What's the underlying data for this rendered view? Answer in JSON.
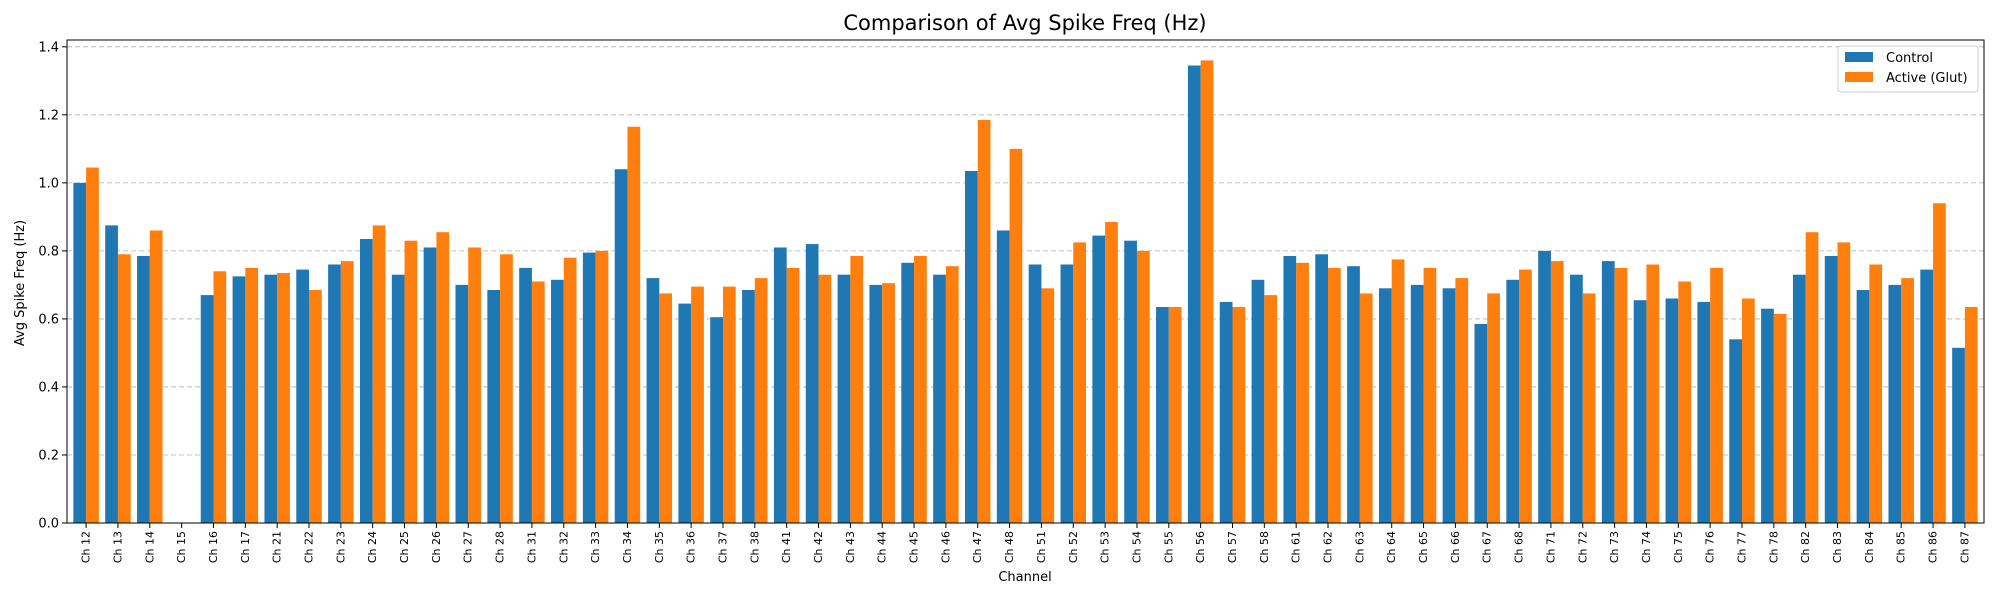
{
  "chart_data": {
    "type": "bar",
    "title": "Comparison of Avg Spike Freq (Hz)",
    "xlabel": "Channel",
    "ylabel": "Avg Spike Freq (Hz)",
    "ylim": [
      0,
      1.42
    ],
    "yticks": [
      0.0,
      0.2,
      0.4,
      0.6,
      0.8,
      1.0,
      1.2,
      1.4
    ],
    "ytick_labels": [
      "0.0",
      "0.2",
      "0.4",
      "0.6",
      "0.8",
      "1.0",
      "1.2",
      "1.4"
    ],
    "grid": "y-dashed",
    "legend_position": "top-right",
    "categories": [
      "Ch 12",
      "Ch 13",
      "Ch 14",
      "Ch 15",
      "Ch 16",
      "Ch 17",
      "Ch 21",
      "Ch 22",
      "Ch 23",
      "Ch 24",
      "Ch 25",
      "Ch 26",
      "Ch 27",
      "Ch 28",
      "Ch 31",
      "Ch 32",
      "Ch 33",
      "Ch 34",
      "Ch 35",
      "Ch 36",
      "Ch 37",
      "Ch 38",
      "Ch 41",
      "Ch 42",
      "Ch 43",
      "Ch 44",
      "Ch 45",
      "Ch 46",
      "Ch 47",
      "Ch 48",
      "Ch 51",
      "Ch 52",
      "Ch 53",
      "Ch 54",
      "Ch 55",
      "Ch 56",
      "Ch 57",
      "Ch 58",
      "Ch 61",
      "Ch 62",
      "Ch 63",
      "Ch 64",
      "Ch 65",
      "Ch 66",
      "Ch 67",
      "Ch 68",
      "Ch 71",
      "Ch 72",
      "Ch 73",
      "Ch 74",
      "Ch 75",
      "Ch 76",
      "Ch 77",
      "Ch 78",
      "Ch 82",
      "Ch 83",
      "Ch 84",
      "Ch 85",
      "Ch 86",
      "Ch 87"
    ],
    "series": [
      {
        "name": "Control",
        "color": "#1f77b4",
        "values": [
          1.0,
          0.875,
          0.785,
          0.0,
          0.67,
          0.725,
          0.73,
          0.745,
          0.76,
          0.835,
          0.73,
          0.81,
          0.7,
          0.685,
          0.75,
          0.715,
          0.795,
          1.04,
          0.72,
          0.645,
          0.605,
          0.685,
          0.81,
          0.82,
          0.73,
          0.7,
          0.765,
          0.73,
          1.035,
          0.86,
          0.76,
          0.76,
          0.845,
          0.83,
          0.635,
          1.345,
          0.65,
          0.715,
          0.785,
          0.79,
          0.755,
          0.69,
          0.7,
          0.69,
          0.585,
          0.715,
          0.8,
          0.73,
          0.77,
          0.655,
          0.66,
          0.65,
          0.54,
          0.63,
          0.73,
          0.785,
          0.685,
          0.7,
          0.745,
          0.515
        ]
      },
      {
        "name": "Active (Glut)",
        "color": "#ff7f0e",
        "values": [
          1.045,
          0.79,
          0.86,
          0.0,
          0.74,
          0.75,
          0.735,
          0.685,
          0.77,
          0.875,
          0.83,
          0.855,
          0.81,
          0.79,
          0.71,
          0.78,
          0.8,
          1.165,
          0.675,
          0.695,
          0.695,
          0.72,
          0.75,
          0.73,
          0.785,
          0.705,
          0.785,
          0.755,
          1.185,
          1.1,
          0.69,
          0.825,
          0.885,
          0.8,
          0.635,
          1.36,
          0.635,
          0.67,
          0.765,
          0.75,
          0.675,
          0.775,
          0.75,
          0.72,
          0.675,
          0.745,
          0.77,
          0.675,
          0.75,
          0.76,
          0.71,
          0.75,
          0.66,
          0.615,
          0.855,
          0.825,
          0.76,
          0.72,
          0.94,
          0.635
        ]
      }
    ]
  }
}
